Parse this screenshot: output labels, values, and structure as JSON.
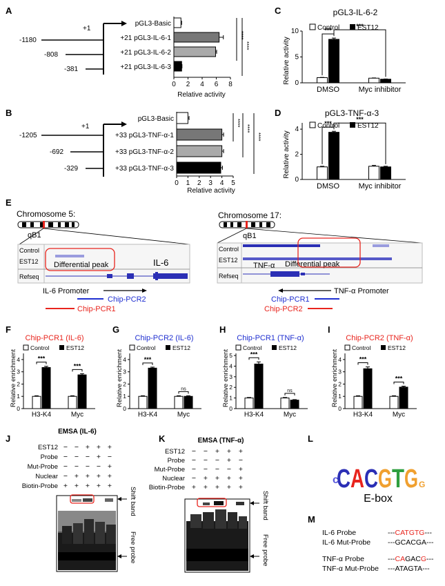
{
  "colors": {
    "white": "#ffffff",
    "black": "#000000",
    "bar_dark_gray": "#777777",
    "bar_light_gray": "#aaaaaa",
    "accent_red": "#e8241d",
    "accent_blue": "#1f2fd0",
    "track_dark_blue": "#2b2fb5",
    "track_light_blue": "#9a9cde",
    "panel_border": "#bbbbbb",
    "gel_black": "#111111"
  },
  "panel_labels": {
    "A": "A",
    "B": "B",
    "C": "C",
    "D": "D",
    "E": "E",
    "F": "F",
    "G": "G",
    "H": "H",
    "I": "I",
    "J": "J",
    "K": "K",
    "L": "L",
    "M": "M"
  },
  "panel_a": {
    "plus1": "+1",
    "positions": [
      "-1180",
      "-808",
      "-381"
    ],
    "constructs": [
      "pGL3-Basic",
      "+21 pGL3-IL-6-1",
      "+21 pGL3-IL-6-2",
      "+21 pGL3-IL-6-3"
    ],
    "xlabel": "Relative activity",
    "sig": [
      "****",
      "****"
    ],
    "chart_data": {
      "type": "bar",
      "orientation": "horizontal",
      "categories": [
        "pGL3-Basic",
        "+21 pGL3-IL-6-1",
        "+21 pGL3-IL-6-2",
        "+21 pGL3-IL-6-3"
      ],
      "values": [
        1.0,
        6.4,
        5.9,
        1.1
      ],
      "errors": [
        0.1,
        0.6,
        0.15,
        0.05
      ],
      "xlim": [
        0,
        8
      ],
      "xticks": [
        "0",
        "2",
        "4",
        "6",
        "8"
      ],
      "xlabel": "Relative activity"
    }
  },
  "panel_b": {
    "plus1": "+1",
    "positions": [
      "-1205",
      "-692",
      "-329"
    ],
    "constructs": [
      "pGL3-Basic",
      "+33 pGL3-TNF-α-1",
      "+33 pGL3-TNF-α-2",
      "+33 pGL3-TNF-α-3"
    ],
    "xlabel": "Relative activity",
    "sig": [
      "****",
      "****",
      "****"
    ],
    "chart_data": {
      "type": "bar",
      "orientation": "horizontal",
      "categories": [
        "pGL3-Basic",
        "+33 pGL3-TNF-α-1",
        "+33 pGL3-TNF-α-2",
        "+33 pGL3-TNF-α-3"
      ],
      "values": [
        1.0,
        4.0,
        4.0,
        3.9
      ],
      "errors": [
        0.1,
        0.15,
        0.15,
        0.15
      ],
      "xlim": [
        0,
        5
      ],
      "xticks": [
        "0",
        "1",
        "2",
        "3",
        "4",
        "5"
      ],
      "xlabel": "Relative activity"
    }
  },
  "panel_c": {
    "title": "pGL3-IL-6-2",
    "legend": [
      "Control",
      "EST12"
    ],
    "sig": [
      "***",
      "***"
    ],
    "chart_data": {
      "type": "bar",
      "categories": [
        "DMSO",
        "Myc inhibitor"
      ],
      "series": [
        {
          "name": "Control",
          "values": [
            1.0,
            0.9
          ],
          "errors": [
            0.05,
            0.05
          ]
        },
        {
          "name": "EST12",
          "values": [
            8.4,
            0.7
          ],
          "errors": [
            0.25,
            0.05
          ]
        }
      ],
      "ylim": [
        0,
        10
      ],
      "yticks": [
        "0",
        "5",
        "10"
      ],
      "ylabel": "Relative activity"
    }
  },
  "panel_d": {
    "title": "pGL3-TNF-α-3",
    "legend": [
      "Control",
      "EST12"
    ],
    "sig": [
      "***",
      "***"
    ],
    "chart_data": {
      "type": "bar",
      "categories": [
        "DMSO",
        "Myc inhibitor"
      ],
      "series": [
        {
          "name": "Control",
          "values": [
            1.0,
            1.05
          ],
          "errors": [
            0.05,
            0.07
          ]
        },
        {
          "name": "EST12",
          "values": [
            3.75,
            1.0
          ],
          "errors": [
            0.08,
            0.05
          ]
        }
      ],
      "ylim": [
        0,
        4.5
      ],
      "yticks": [
        "0",
        "2",
        "4"
      ],
      "ylabel": "Relative activity"
    }
  },
  "panel_e": {
    "left": {
      "chromosome": "Chromosome 5:",
      "band": "qB1",
      "tracks": [
        "Control",
        "EST12",
        "Refseq"
      ],
      "peak_label": "Differential peak",
      "gene": "IL-6",
      "promoter": "IL-6 Promoter",
      "chip_pcr2": "Chip-PCR2",
      "chip_pcr1": "Chip-PCR1"
    },
    "right": {
      "chromosome": "Chromosome 17:",
      "band": "qB1",
      "tracks": [
        "Control",
        "EST12",
        "Refseq"
      ],
      "peak_label": "Differential peak",
      "gene": "TNF-α",
      "promoter": "TNF-α Promoter",
      "chip_pcr1": "Chip-PCR1",
      "chip_pcr2": "Chip-PCR2"
    }
  },
  "chip_panels": [
    {
      "title": "Chip-PCR1 (IL-6)",
      "title_color": "#e8241d",
      "legend": [
        "Control",
        "EST12"
      ],
      "sig": [
        "***",
        "***"
      ],
      "chart_data": {
        "type": "bar",
        "categories": [
          "H3-K4",
          "Myc"
        ],
        "series": [
          {
            "name": "Control",
            "values": [
              1.0,
              1.0
            ],
            "errors": [
              0.05,
              0.05
            ]
          },
          {
            "name": "EST12",
            "values": [
              3.35,
              2.75
            ],
            "errors": [
              0.1,
              0.1
            ]
          }
        ],
        "ylim": [
          0,
          4.5
        ],
        "yticks": [
          "0",
          "1",
          "2",
          "3",
          "4"
        ],
        "ylabel": "Relative enrichment"
      }
    },
    {
      "title": "Chip-PCR2 (IL-6)",
      "title_color": "#1f2fd0",
      "legend": [
        "Control",
        "EST12"
      ],
      "sig": [
        "***",
        "ns"
      ],
      "chart_data": {
        "type": "bar",
        "categories": [
          "H3-K4",
          "Myc"
        ],
        "series": [
          {
            "name": "Control",
            "values": [
              1.0,
              1.0
            ],
            "errors": [
              0.05,
              0.05
            ]
          },
          {
            "name": "EST12",
            "values": [
              3.3,
              1.0
            ],
            "errors": [
              0.08,
              0.05
            ]
          }
        ],
        "ylim": [
          0,
          4.5
        ],
        "yticks": [
          "0",
          "1",
          "2",
          "3",
          "4"
        ],
        "ylabel": "Relative enrichment"
      }
    },
    {
      "title": "Chip-PCR1 (TNF-α)",
      "title_color": "#1f2fd0",
      "legend": [
        "Control",
        "EST12"
      ],
      "sig": [
        "***",
        "ns"
      ],
      "chart_data": {
        "type": "bar",
        "categories": [
          "H3-K4",
          "Myc"
        ],
        "series": [
          {
            "name": "Control",
            "values": [
              1.0,
              1.0
            ],
            "errors": [
              0.05,
              0.05
            ]
          },
          {
            "name": "EST12",
            "values": [
              4.2,
              0.8
            ],
            "errors": [
              0.2,
              0.05
            ]
          }
        ],
        "ylim": [
          0,
          5.2
        ],
        "yticks": [
          "0",
          "1",
          "2",
          "3",
          "4",
          "5"
        ],
        "ylabel": "Relative enrichment"
      }
    },
    {
      "title": "Chip-PCR2 (TNF-α)",
      "title_color": "#e8241d",
      "legend": [
        "Control",
        "EST12"
      ],
      "sig": [
        "***",
        "***"
      ],
      "chart_data": {
        "type": "bar",
        "categories": [
          "H3-K4",
          "Myc"
        ],
        "series": [
          {
            "name": "Control",
            "values": [
              1.0,
              1.0
            ],
            "errors": [
              0.05,
              0.05
            ]
          },
          {
            "name": "EST12",
            "values": [
              3.25,
              1.75
            ],
            "errors": [
              0.15,
              0.08
            ]
          }
        ],
        "ylim": [
          0,
          4.5
        ],
        "yticks": [
          "0",
          "1",
          "2",
          "3",
          "4"
        ],
        "ylabel": "Relative enrichment"
      }
    }
  ],
  "panel_j": {
    "title": "EMSA (IL-6)",
    "row_labels": [
      "EST12",
      "Probe",
      "Mut-Probe",
      "Nuclear",
      "Biotin-Probe"
    ],
    "rows": [
      [
        "−",
        "−",
        "+",
        "+",
        "+"
      ],
      [
        "−",
        "−",
        "−",
        "+",
        "−"
      ],
      [
        "−",
        "−",
        "−",
        "−",
        "+"
      ],
      [
        "−",
        "+",
        "+",
        "+",
        "+"
      ],
      [
        "+",
        "+",
        "+",
        "+",
        "+"
      ]
    ],
    "shift_band": "Shift band",
    "free_probe": "Free probe"
  },
  "panel_k": {
    "title": "EMSA (TNF-α)",
    "row_labels": [
      "EST12",
      "Probe",
      "Mut-Probe",
      "Nuclear",
      "Biotin-Probe"
    ],
    "rows": [
      [
        "−",
        "−",
        "+",
        "+",
        "+"
      ],
      [
        "−",
        "−",
        "−",
        "+",
        "−"
      ],
      [
        "−",
        "−",
        "−",
        "−",
        "+"
      ],
      [
        "−",
        "+",
        "+",
        "+",
        "+"
      ],
      [
        "+",
        "+",
        "+",
        "+",
        "+"
      ]
    ],
    "shift_band": "Shift band",
    "free_probe": "Free probe"
  },
  "panel_l": {
    "motif_letters": [
      "C",
      "A",
      "C",
      "G",
      "T",
      "G"
    ],
    "label": "E-box"
  },
  "panel_m": {
    "probes": [
      {
        "name": "IL-6 Probe",
        "prefix": "---",
        "seq_red": "CATGTG",
        "seq_black": "",
        "suffix": "---"
      },
      {
        "name": "IL-6 Mut-Probe",
        "prefix": "---",
        "seq_red": "",
        "seq_black": "GCACGA",
        "suffix": "---"
      },
      {
        "name": "TNF-α Probe",
        "prefix": "---",
        "seq_red": "CA",
        "seq_mid": "GAC",
        "seq_red2": "G",
        "suffix": "---"
      },
      {
        "name": "TNF-α Mut-Probe",
        "prefix": "---",
        "seq_red": "",
        "seq_black": "ATAGTA",
        "suffix": "---"
      }
    ]
  }
}
